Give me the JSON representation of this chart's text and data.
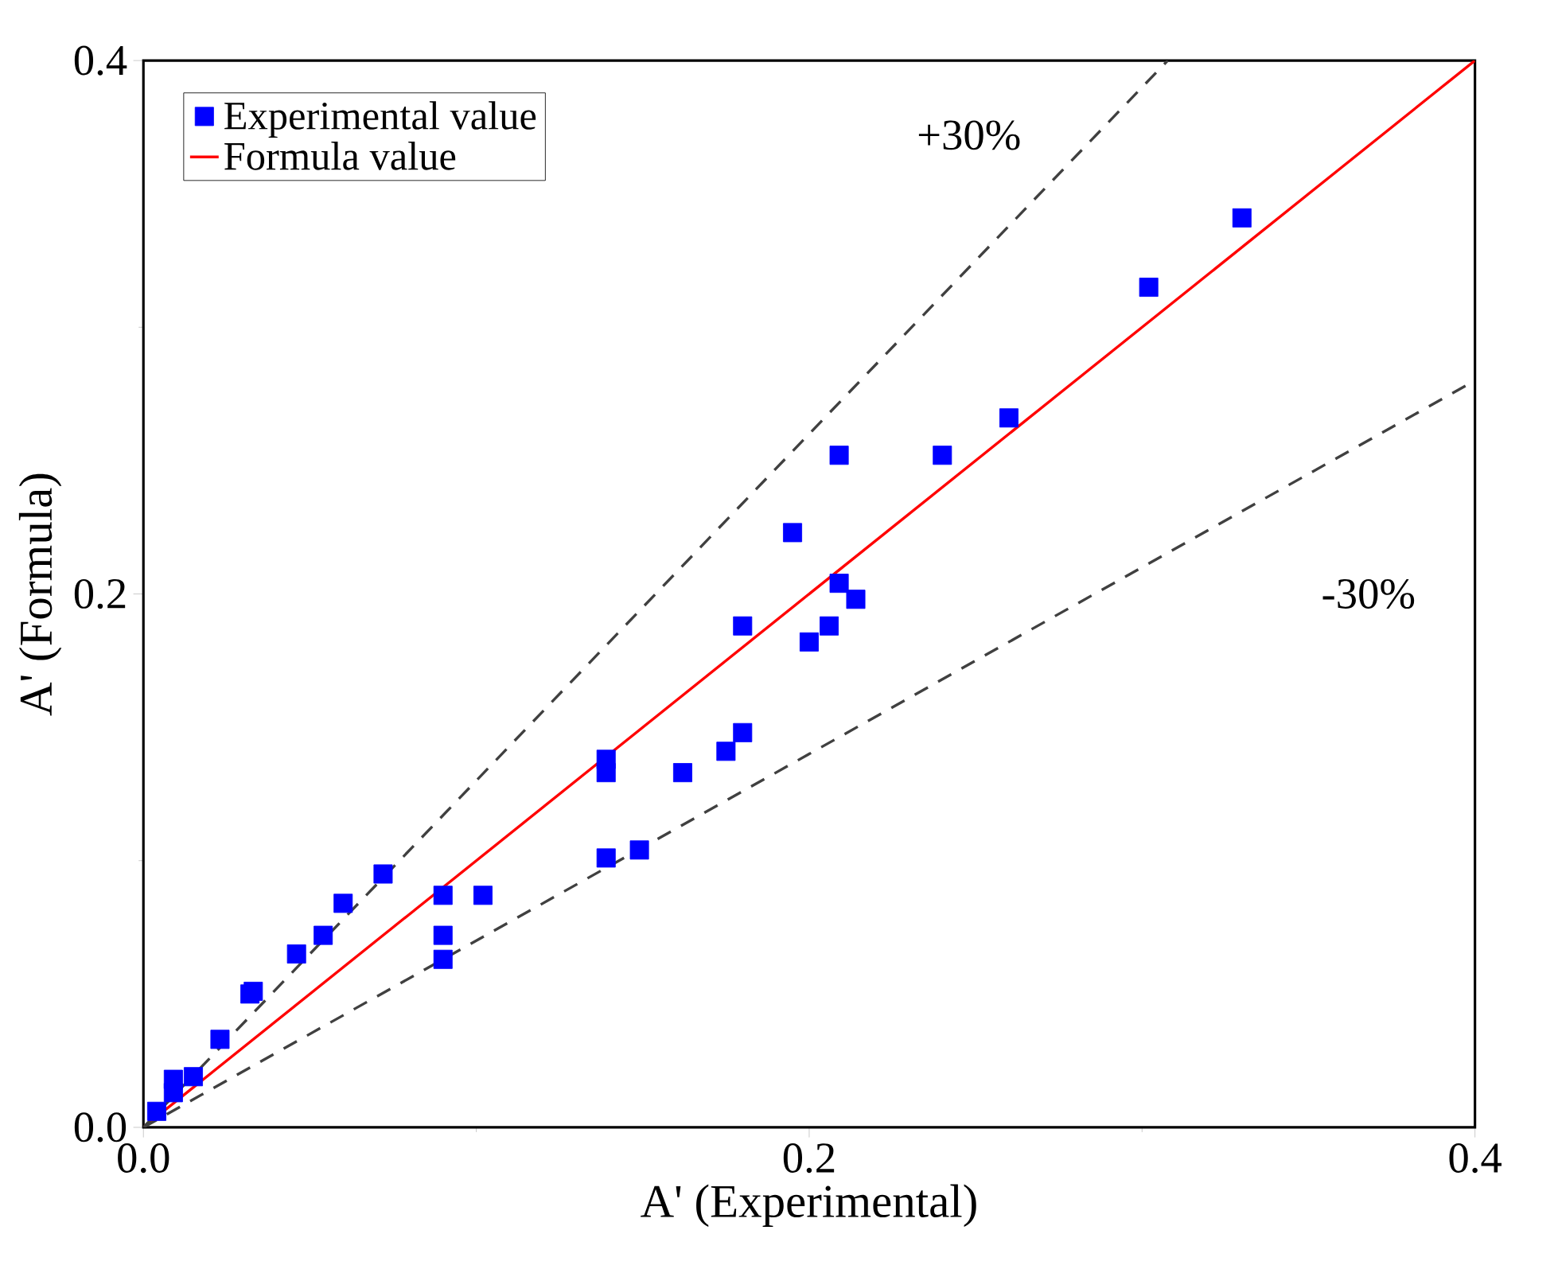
{
  "chart_data": {
    "type": "scatter",
    "xlabel": "A' (Experimental)",
    "ylabel": "A' (Formula)",
    "xlim": [
      0,
      0.4
    ],
    "ylim": [
      0,
      0.4
    ],
    "xticks": [
      {
        "value": 0,
        "label": "0.0"
      },
      0.2,
      0.4
    ],
    "yticks": [
      {
        "value": 0,
        "label": "0.0"
      },
      0.2,
      0.4
    ],
    "legend": "top left",
    "grid": false,
    "series": [
      {
        "name": "Experimental value",
        "marker": "square",
        "color": "#0000ff",
        "x": [
          0.004,
          0.009,
          0.009,
          0.015,
          0.023,
          0.032,
          0.033,
          0.046,
          0.054,
          0.06,
          0.072,
          0.09,
          0.09,
          0.09,
          0.102,
          0.139,
          0.139,
          0.139,
          0.149,
          0.162,
          0.175,
          0.18,
          0.18,
          0.195,
          0.2,
          0.206,
          0.209,
          0.214,
          0.209,
          0.24,
          0.26,
          0.302,
          0.33
        ],
        "values": [
          0.006,
          0.018,
          0.013,
          0.019,
          0.033,
          0.05,
          0.051,
          0.065,
          0.072,
          0.084,
          0.095,
          0.087,
          0.072,
          0.063,
          0.087,
          0.138,
          0.133,
          0.101,
          0.104,
          0.133,
          0.141,
          0.148,
          0.188,
          0.223,
          0.182,
          0.188,
          0.204,
          0.198,
          0.252,
          0.252,
          0.266,
          0.315,
          0.341
        ]
      },
      {
        "name": "Formula value",
        "type": "line",
        "marker": "none",
        "line_style": "solid",
        "color": "#ff0000",
        "x": [
          0,
          0.4
        ],
        "values": [
          0,
          0.4
        ]
      },
      {
        "type": "line",
        "marker": "none",
        "line_style": "dashed",
        "color": "#404040",
        "x": [
          0,
          0.3077
        ],
        "values": [
          0,
          0.4
        ]
      },
      {
        "type": "line",
        "marker": "none",
        "line_style": "dashed",
        "color": "#404040",
        "x": [
          0,
          0.4
        ],
        "values": [
          0,
          0.28
        ]
      }
    ],
    "annotations": [
      "+30%",
      "-30%"
    ]
  }
}
